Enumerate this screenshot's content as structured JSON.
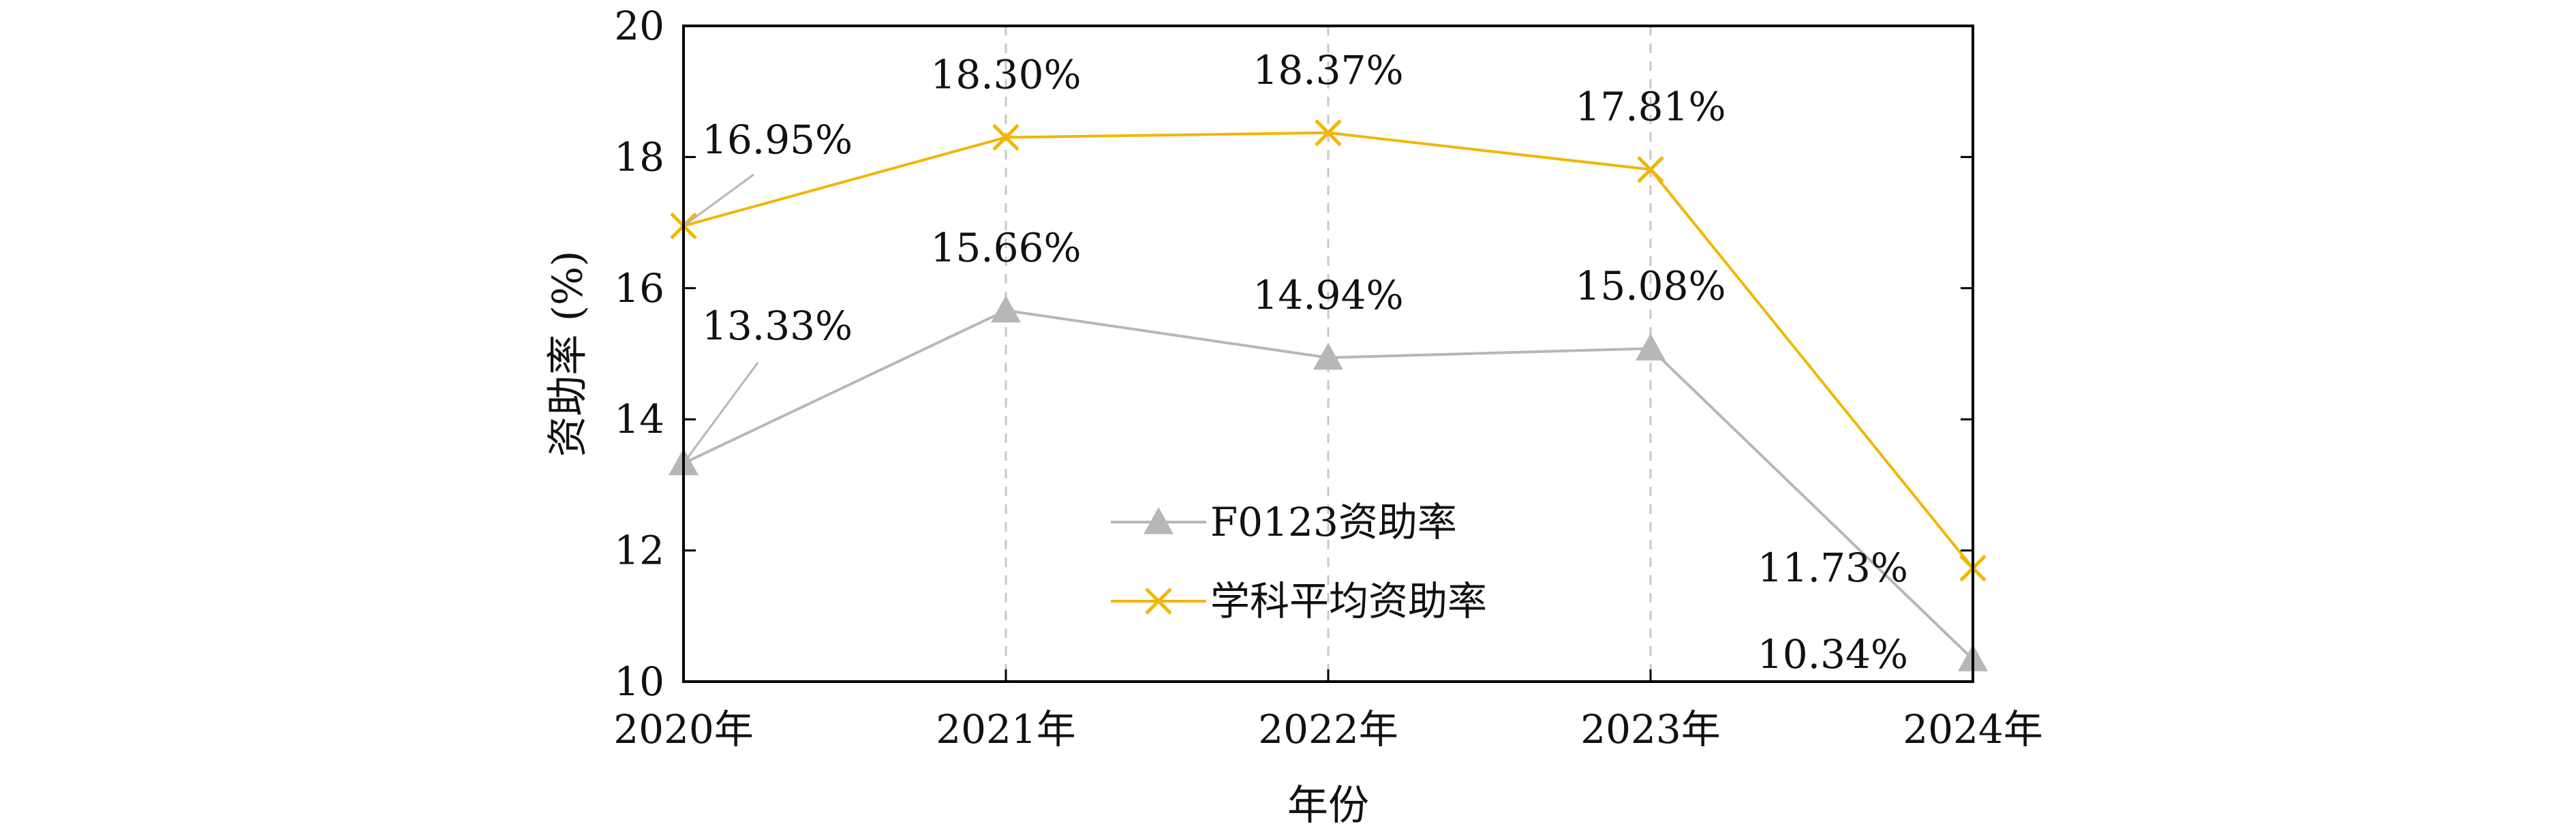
{
  "chart_data": {
    "type": "line",
    "title": "",
    "xlabel": "年份",
    "ylabel": "资助率 (%)",
    "categories": [
      "2020年",
      "2021年",
      "2022年",
      "2023年",
      "2024年"
    ],
    "ylim": [
      10,
      20
    ],
    "yticks": [
      "10",
      "12",
      "14",
      "16",
      "18",
      "20"
    ],
    "grid": "vertical-dashed",
    "legend_position": "center-bottom",
    "series": [
      {
        "name": "F0123资助率",
        "values": [
          13.33,
          15.66,
          14.94,
          15.08,
          10.34
        ],
        "labels": [
          "13.33%",
          "15.66%",
          "14.94%",
          "15.08%",
          "10.34%"
        ],
        "color": "#b7b7b7",
        "marker": "triangle"
      },
      {
        "name": "学科平均资助率",
        "values": [
          16.95,
          18.3,
          18.37,
          17.81,
          11.73
        ],
        "labels": [
          "16.95%",
          "18.30%",
          "18.37%",
          "17.81%",
          "11.73%"
        ],
        "color": "#f2b600",
        "marker": "x"
      }
    ]
  }
}
